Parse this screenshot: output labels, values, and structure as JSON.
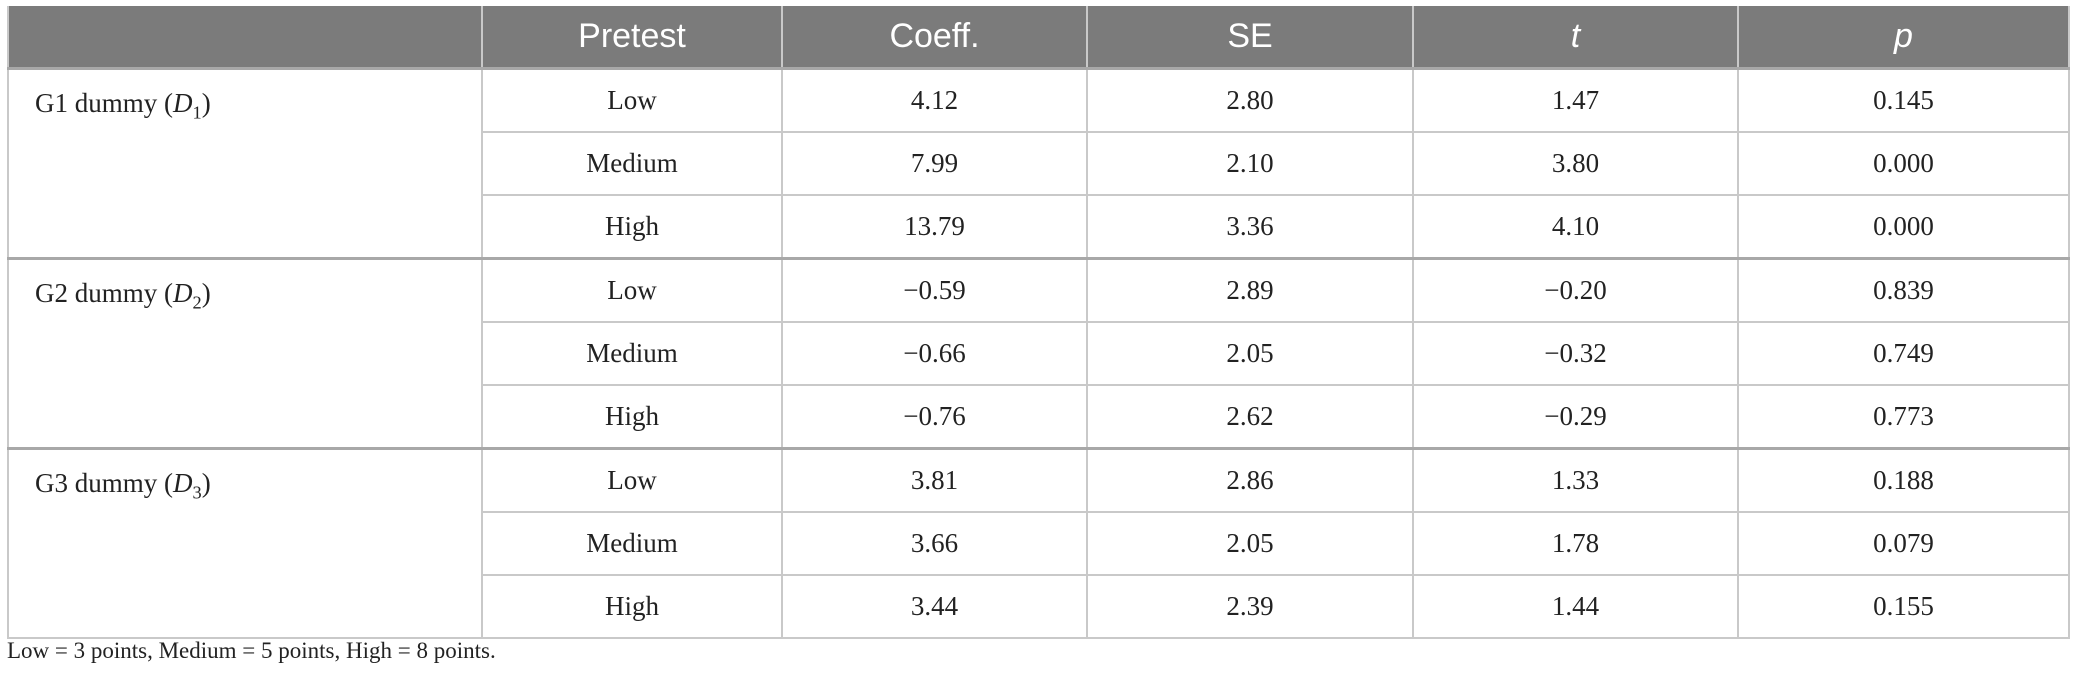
{
  "table": {
    "headers": [
      "",
      "Pretest",
      "Coeff.",
      "SE",
      "t",
      "p"
    ],
    "groups": [
      {
        "label_prefix": "G1 dummy (",
        "label_var": "D",
        "label_sub": "1",
        "label_suffix": ")",
        "rows": [
          {
            "pretest": "Low",
            "coeff": "4.12",
            "se": "2.80",
            "t": "1.47",
            "p": "0.145"
          },
          {
            "pretest": "Medium",
            "coeff": "7.99",
            "se": "2.10",
            "t": "3.80",
            "p": "0.000"
          },
          {
            "pretest": "High",
            "coeff": "13.79",
            "se": "3.36",
            "t": "4.10",
            "p": "0.000"
          }
        ]
      },
      {
        "label_prefix": "G2 dummy (",
        "label_var": "D",
        "label_sub": "2",
        "label_suffix": ")",
        "rows": [
          {
            "pretest": "Low",
            "coeff": "−0.59",
            "se": "2.89",
            "t": "−0.20",
            "p": "0.839"
          },
          {
            "pretest": "Medium",
            "coeff": "−0.66",
            "se": "2.05",
            "t": "−0.32",
            "p": "0.749"
          },
          {
            "pretest": "High",
            "coeff": "−0.76",
            "se": "2.62",
            "t": "−0.29",
            "p": "0.773"
          }
        ]
      },
      {
        "label_prefix": "G3 dummy (",
        "label_var": "D",
        "label_sub": "3",
        "label_suffix": ")",
        "rows": [
          {
            "pretest": "Low",
            "coeff": "3.81",
            "se": "2.86",
            "t": "1.33",
            "p": "0.188"
          },
          {
            "pretest": "Medium",
            "coeff": "3.66",
            "se": "2.05",
            "t": "1.78",
            "p": "0.079"
          },
          {
            "pretest": "High",
            "coeff": "3.44",
            "se": "2.39",
            "t": "1.44",
            "p": "0.155"
          }
        ]
      }
    ]
  },
  "footnote": "Low = 3 points, Medium = 5 points, High = 8 points."
}
